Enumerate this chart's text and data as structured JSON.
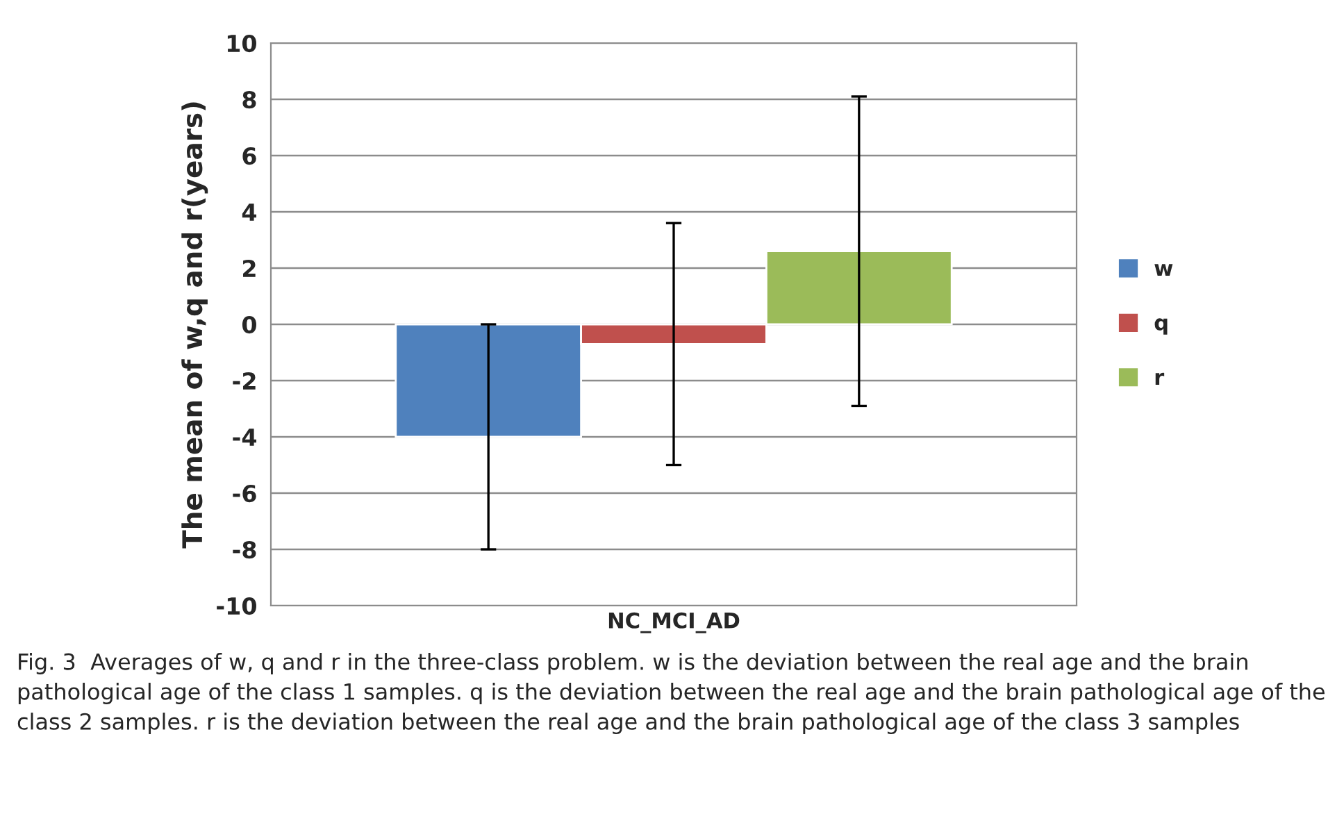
{
  "chart_data": {
    "type": "bar",
    "ylabel": "The mean of w,q and r(years)",
    "categories": [
      "NC_MCI_AD"
    ],
    "series": [
      {
        "name": "w",
        "color": "#4f81bd",
        "values": [
          -4
        ],
        "errors": [
          4
        ]
      },
      {
        "name": "q",
        "color": "#c0504d",
        "values": [
          -0.7
        ],
        "errors": [
          4.3
        ]
      },
      {
        "name": "r",
        "color": "#9bbb59",
        "values": [
          2.6
        ],
        "errors": [
          5.5
        ]
      }
    ],
    "ylim": [
      -10,
      10
    ],
    "yticks": [
      -10,
      -8,
      -6,
      -4,
      -2,
      0,
      2,
      4,
      6,
      8,
      10
    ],
    "grid": "y",
    "legend": "right",
    "annotations": [
      "Fig. 3  Averages of w, q and r in the three-class problem. w is the deviation between the real age and the brain pathological age of the class 1 samples. q is the deviation between the real age and the brain pathological age of the class 2 samples. r is the deviation between the real age and the brain pathological age of the class 3 samples"
    ]
  }
}
